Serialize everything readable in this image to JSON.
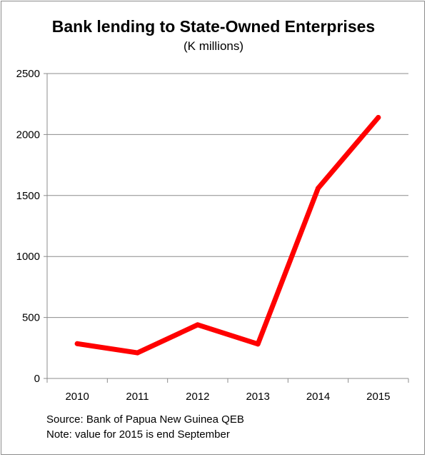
{
  "chart_data": {
    "type": "line",
    "title": "Bank lending to State-Owned Enterprises",
    "subtitle": "(K millions)",
    "categories": [
      "2010",
      "2011",
      "2012",
      "2013",
      "2014",
      "2015"
    ],
    "series": [
      {
        "values": [
          285,
          210,
          440,
          282,
          1560,
          2140
        ]
      }
    ],
    "ylim": [
      0,
      2500
    ],
    "yticks": [
      0,
      500,
      1000,
      1500,
      2000,
      2500
    ],
    "grid": true,
    "legend": "none",
    "line_color": "#ff0000"
  },
  "notes": {
    "source": "Source: Bank of Papua New Guinea QEB",
    "note": "Note: value for 2015 is end September"
  }
}
